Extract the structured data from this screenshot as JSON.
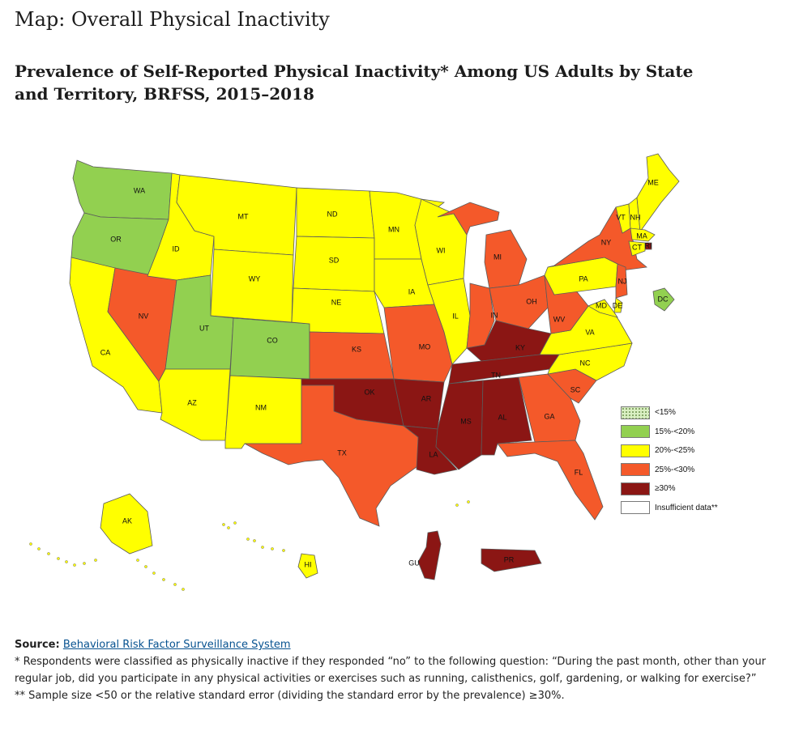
{
  "page": {
    "title": "Map: Overall Physical Inactivity",
    "heading": "Prevalence of Self-Reported Physical Inactivity* Among US Adults by State and Territory, BRFSS, 2015–2018"
  },
  "legend": {
    "items": [
      {
        "label": "<15%",
        "color": "#d9efc2",
        "pattern": "dotted"
      },
      {
        "label": "15%-<20%",
        "color": "#92d050"
      },
      {
        "label": "20%-<25%",
        "color": "#ffff00"
      },
      {
        "label": "25%-<30%",
        "color": "#f4592a"
      },
      {
        "label": "≥30%",
        "color": "#8b1614"
      },
      {
        "label": "Insufficient data**",
        "color": "#ffffff"
      }
    ]
  },
  "map": {
    "regions": [
      {
        "abbr": "WA",
        "category": "15%-<20%"
      },
      {
        "abbr": "OR",
        "category": "15%-<20%"
      },
      {
        "abbr": "CA",
        "category": "20%-<25%"
      },
      {
        "abbr": "NV",
        "category": "25%-<30%"
      },
      {
        "abbr": "ID",
        "category": "20%-<25%"
      },
      {
        "abbr": "MT",
        "category": "20%-<25%"
      },
      {
        "abbr": "WY",
        "category": "20%-<25%"
      },
      {
        "abbr": "UT",
        "category": "15%-<20%"
      },
      {
        "abbr": "CO",
        "category": "15%-<20%"
      },
      {
        "abbr": "AZ",
        "category": "20%-<25%"
      },
      {
        "abbr": "NM",
        "category": "20%-<25%"
      },
      {
        "abbr": "ND",
        "category": "20%-<25%"
      },
      {
        "abbr": "SD",
        "category": "20%-<25%"
      },
      {
        "abbr": "NE",
        "category": "20%-<25%"
      },
      {
        "abbr": "KS",
        "category": "25%-<30%"
      },
      {
        "abbr": "OK",
        "category": "≥30%"
      },
      {
        "abbr": "TX",
        "category": "25%-<30%"
      },
      {
        "abbr": "MN",
        "category": "20%-<25%"
      },
      {
        "abbr": "IA",
        "category": "20%-<25%"
      },
      {
        "abbr": "MO",
        "category": "25%-<30%"
      },
      {
        "abbr": "AR",
        "category": "≥30%"
      },
      {
        "abbr": "LA",
        "category": "≥30%"
      },
      {
        "abbr": "WI",
        "category": "20%-<25%"
      },
      {
        "abbr": "IL",
        "category": "20%-<25%"
      },
      {
        "abbr": "MI",
        "category": "25%-<30%"
      },
      {
        "abbr": "IN",
        "category": "25%-<30%"
      },
      {
        "abbr": "OH",
        "category": "25%-<30%"
      },
      {
        "abbr": "KY",
        "category": "≥30%"
      },
      {
        "abbr": "TN",
        "category": "≥30%"
      },
      {
        "abbr": "MS",
        "category": "≥30%"
      },
      {
        "abbr": "AL",
        "category": "≥30%"
      },
      {
        "abbr": "GA",
        "category": "25%-<30%"
      },
      {
        "abbr": "FL",
        "category": "25%-<30%"
      },
      {
        "abbr": "SC",
        "category": "25%-<30%"
      },
      {
        "abbr": "NC",
        "category": "20%-<25%"
      },
      {
        "abbr": "VA",
        "category": "20%-<25%"
      },
      {
        "abbr": "WV",
        "category": "25%-<30%"
      },
      {
        "abbr": "PA",
        "category": "20%-<25%"
      },
      {
        "abbr": "NY",
        "category": "25%-<30%"
      },
      {
        "abbr": "VT",
        "category": "20%-<25%"
      },
      {
        "abbr": "NH",
        "category": "20%-<25%"
      },
      {
        "abbr": "ME",
        "category": "20%-<25%"
      },
      {
        "abbr": "MA",
        "category": "20%-<25%"
      },
      {
        "abbr": "RI",
        "category": "≥30%"
      },
      {
        "abbr": "CT",
        "category": "20%-<25%"
      },
      {
        "abbr": "NJ",
        "category": "25%-<30%"
      },
      {
        "abbr": "DE",
        "category": "20%-<25%"
      },
      {
        "abbr": "MD",
        "category": "20%-<25%"
      },
      {
        "abbr": "DC",
        "category": "15%-<20%"
      },
      {
        "abbr": "AK",
        "category": "20%-<25%"
      },
      {
        "abbr": "HI",
        "category": "20%-<25%"
      },
      {
        "abbr": "GU",
        "category": "≥30%"
      },
      {
        "abbr": "PR",
        "category": "≥30%"
      }
    ]
  },
  "notes": {
    "source_label": "Source:",
    "source_link": "Behavioral Risk Factor Surveillance System",
    "footnote1": "* Respondents were classified as physically inactive if they responded “no” to the following question: “During the past month, other than your regular job, did you participate in any physical activities or exercises such as running, calisthenics, golf, gardening, or walking for exercise?”",
    "footnote2": "** Sample size <50 or the relative standard error (dividing the standard error by the prevalence) ≥30%."
  }
}
